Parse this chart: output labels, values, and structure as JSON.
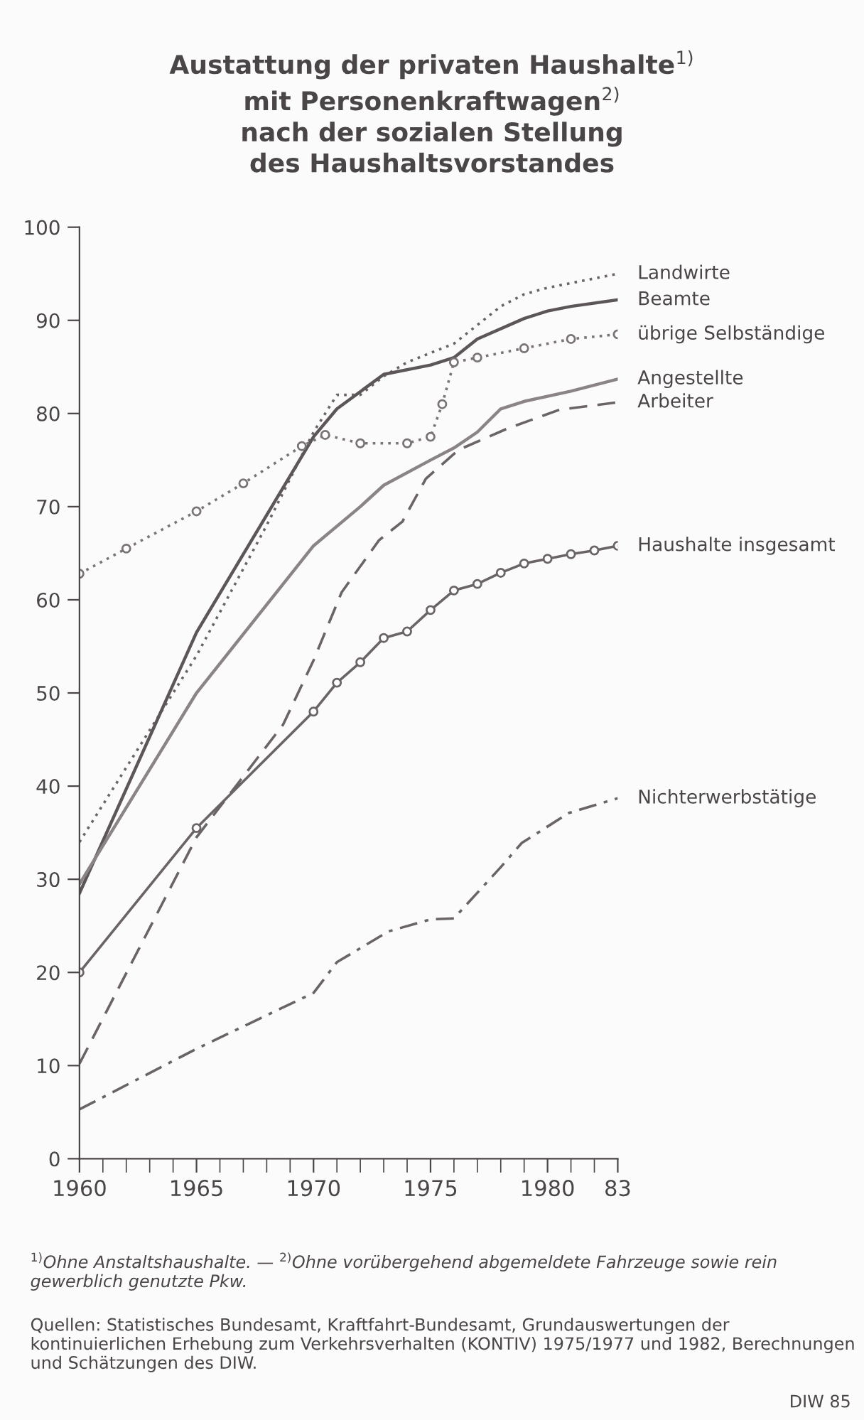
{
  "chart_data": {
    "type": "line",
    "title": "Austattung der privaten Haushalte$^{1)}$\nmit Personenkraftwagen$^{2)}$\nnach der sozialen Stellung\ndes Haushaltsvorstandes",
    "xlim": [
      1960,
      1983
    ],
    "ylim": [
      0,
      100
    ],
    "xticks": [
      1960,
      {
        "value": 1961,
        "label": null
      },
      {
        "value": 1962,
        "label": null
      },
      {
        "value": 1963,
        "label": null
      },
      {
        "value": 1964,
        "label": null
      },
      1965,
      {
        "value": 1966,
        "label": null
      },
      {
        "value": 1967,
        "label": null
      },
      {
        "value": 1968,
        "label": null
      },
      {
        "value": 1969,
        "label": null
      },
      1970,
      {
        "value": 1971,
        "label": null
      },
      {
        "value": 1972,
        "label": null
      },
      {
        "value": 1973,
        "label": null
      },
      {
        "value": 1974,
        "label": null
      },
      1975,
      {
        "value": 1976,
        "label": null
      },
      {
        "value": 1977,
        "label": null
      },
      {
        "value": 1978,
        "label": null
      },
      {
        "value": 1979,
        "label": null
      },
      1980,
      {
        "value": 1981,
        "label": null
      },
      {
        "value": 1982,
        "label": null
      },
      {
        "value": 1983,
        "label": "83"
      }
    ],
    "yticks": [
      0,
      10,
      20,
      30,
      40,
      50,
      60,
      70,
      80,
      90,
      100
    ],
    "grid": false,
    "legend": false,
    "series": [
      {
        "name": "Landwirte",
        "color": "#6a6466",
        "line_style": "dotted",
        "marker": "none",
        "x": [
          1960,
          1962,
          1965,
          1968,
          1970,
          1971,
          1972,
          1973,
          1974,
          1975,
          1976,
          1977,
          1978,
          1979,
          1980,
          1981,
          1982,
          1983
        ],
        "values": [
          34,
          42,
          54,
          68,
          78,
          82,
          82,
          84,
          85.5,
          86.5,
          87.5,
          89.5,
          91.5,
          92.8,
          93.5,
          94,
          94.5,
          95
        ]
      },
      {
        "name": "Beamte",
        "color": "#5c5658",
        "line_style": "solid",
        "marker": "none",
        "x": [
          1960,
          1965,
          1970,
          1971,
          1973,
          1975,
          1976,
          1977,
          1979,
          1980,
          1981,
          1983
        ],
        "values": [
          28.5,
          56.5,
          77.5,
          80.5,
          84.2,
          85.2,
          86,
          88,
          90.2,
          91,
          91.5,
          92.2
        ]
      },
      {
        "name": "übrige Selbständige",
        "color": "#7a7476",
        "line_style": "dotted",
        "marker": "circle",
        "x": [
          1960,
          1962,
          1965,
          1967,
          1969.5,
          1970.5,
          1972,
          1974,
          1975,
          1975.5,
          1976,
          1977,
          1979,
          1981,
          1983
        ],
        "values": [
          62.8,
          65.5,
          69.5,
          72.5,
          76.5,
          77.7,
          76.8,
          76.8,
          77.5,
          81,
          85.5,
          86,
          87,
          88,
          88.5
        ]
      },
      {
        "name": "Angestellte",
        "color": "#8a8486",
        "line_style": "solid",
        "marker": "none",
        "x": [
          1960,
          1965,
          1970,
          1972,
          1973,
          1975,
          1976,
          1977,
          1978,
          1979,
          1981,
          1983
        ],
        "values": [
          29.5,
          50,
          65.8,
          70,
          72.3,
          75,
          76.3,
          78,
          80.5,
          81.3,
          82.4,
          83.7
        ]
      },
      {
        "name": "Arbeiter",
        "color": "#6a6466",
        "line_style": "dashed",
        "marker": "none",
        "x": [
          1960,
          1965,
          1968.7,
          1970,
          1971.2,
          1972.8,
          1973.8,
          1974.8,
          1976.2,
          1978.3,
          1980.5,
          1983
        ],
        "values": [
          10.2,
          34.5,
          46.6,
          53.5,
          60.8,
          66.4,
          68.4,
          73,
          76.1,
          78.4,
          80.4,
          81.2
        ]
      },
      {
        "name": "Haushalte insgesamt",
        "color": "#6a6466",
        "line_style": "solid",
        "marker": "circle",
        "x": [
          1960,
          1965,
          1970,
          1971,
          1972,
          1973,
          1974,
          1975,
          1976,
          1977,
          1978,
          1979,
          1980,
          1981,
          1982,
          1983
        ],
        "values": [
          20,
          35.5,
          48,
          51.1,
          53.3,
          55.9,
          56.6,
          58.9,
          61,
          61.7,
          62.9,
          63.9,
          64.4,
          64.9,
          65.3,
          65.8
        ]
      },
      {
        "name": "Nichterwerbstätige",
        "color": "#6a6466",
        "line_style": "dashdot",
        "marker": "none",
        "x": [
          1960,
          1965,
          1970,
          1971,
          1973.2,
          1975,
          1976,
          1978,
          1978.9,
          1980.9,
          1983
        ],
        "values": [
          5.3,
          11.8,
          17.8,
          21.1,
          24.4,
          25.7,
          25.8,
          31.3,
          33.9,
          37.1,
          38.7
        ]
      }
    ],
    "annotations": [
      "$^{1)}$Ohne Anstaltshaushalte. — $^{2)}$Ohne vorübergehend abgemeldete Fahrzeuge sowie rein gewerblich genutzte Pkw.",
      "Quellen: Statistisches Bundesamt, Kraftfahrt-Bundesamt, Grundauswertungen der kontinuierlichen Erhebung zum Verkehrsverhalten (KONTIV) 1975/1977 und 1982, Berechnungen und Schätzungen des DIW.",
      "DIW 85"
    ]
  }
}
